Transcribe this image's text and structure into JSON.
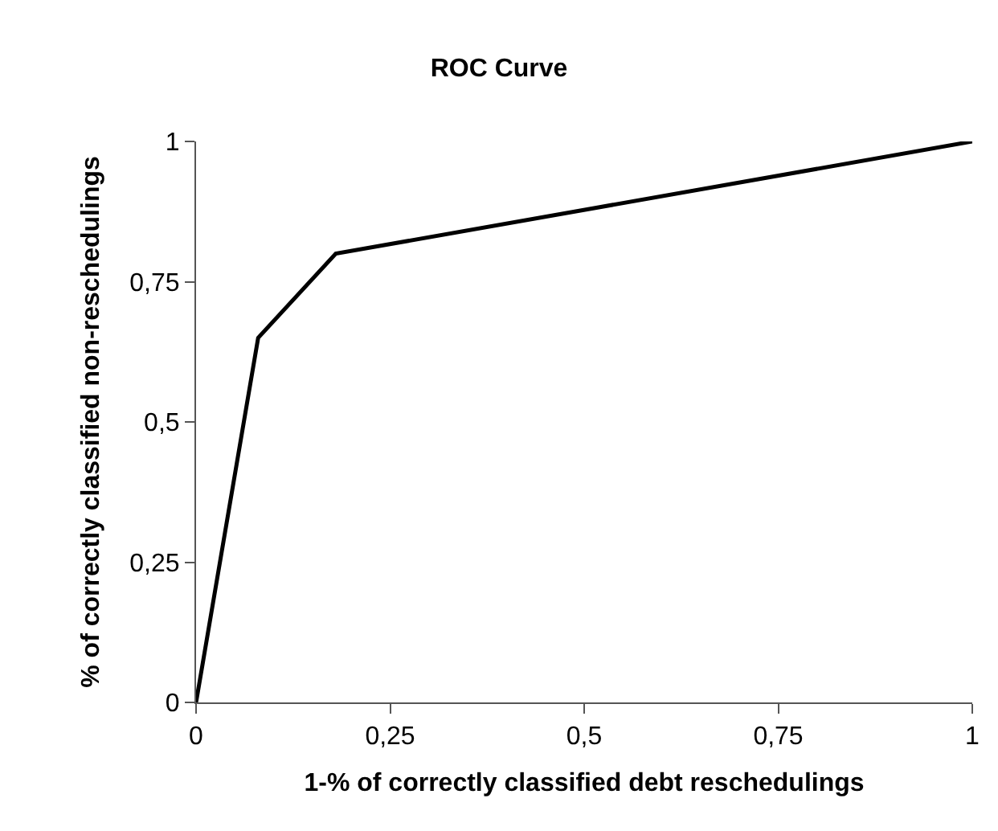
{
  "chart_data": {
    "type": "line",
    "title": "ROC Curve",
    "xlabel": "1-% of correctly classified debt reschedulings",
    "ylabel": "% of correctly classified non-reschedulings",
    "x": [
      0,
      0.08,
      0.18,
      1
    ],
    "series": [
      {
        "color": "#000000",
        "values": [
          0,
          0.65,
          0.8,
          1
        ]
      }
    ],
    "xlim": [
      0,
      1
    ],
    "ylim": [
      0,
      1
    ],
    "xticks": [
      {
        "value": 0,
        "label": "0"
      },
      {
        "value": 0.25,
        "label": "0,25"
      },
      {
        "value": 0.5,
        "label": "0,5"
      },
      {
        "value": 0.75,
        "label": "0,75"
      },
      {
        "value": 1,
        "label": "1"
      }
    ],
    "yticks": [
      {
        "value": 0,
        "label": "0"
      },
      {
        "value": 0.25,
        "label": "0,25"
      },
      {
        "value": 0.5,
        "label": "0,5"
      },
      {
        "value": 0.75,
        "label": "0,75"
      },
      {
        "value": 1,
        "label": "1"
      }
    ],
    "line_style": "solid"
  }
}
